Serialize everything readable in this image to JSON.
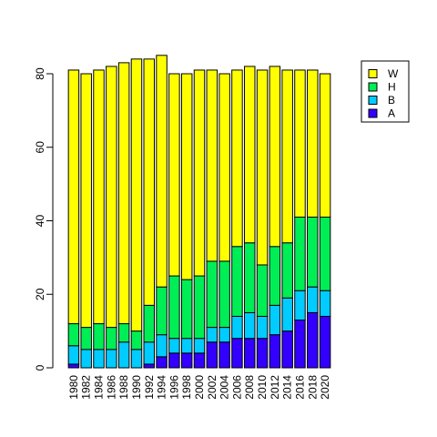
{
  "chart_data": {
    "type": "bar",
    "stacked": true,
    "categories": [
      "1980",
      "1982",
      "1984",
      "1986",
      "1988",
      "1990",
      "1992",
      "1994",
      "1996",
      "1998",
      "2000",
      "2002",
      "2004",
      "2006",
      "2008",
      "2010",
      "2012",
      "2014",
      "2016",
      "2018",
      "2020"
    ],
    "series": [
      {
        "name": "A",
        "color": "#3300ff",
        "values": [
          1,
          0,
          0,
          0,
          0,
          0,
          1,
          3,
          4,
          4,
          4,
          7,
          7,
          8,
          8,
          8,
          9,
          10,
          13,
          15,
          14
        ]
      },
      {
        "name": "B",
        "color": "#00ccff",
        "values": [
          5,
          5,
          5,
          5,
          7,
          5,
          6,
          6,
          4,
          4,
          4,
          4,
          4,
          6,
          7,
          6,
          8,
          9,
          8,
          7,
          7
        ]
      },
      {
        "name": "H",
        "color": "#00ee55",
        "values": [
          6,
          6,
          7,
          6,
          5,
          5,
          10,
          13,
          17,
          16,
          17,
          18,
          18,
          19,
          19,
          14,
          16,
          15,
          20,
          19,
          20
        ]
      },
      {
        "name": "W",
        "color": "#ffff00",
        "values": [
          69,
          69,
          69,
          71,
          71,
          74,
          67,
          63,
          55,
          56,
          56,
          52,
          51,
          48,
          48,
          53,
          49,
          47,
          40,
          40,
          39
        ]
      }
    ],
    "yticks": [
      0,
      20,
      40,
      60,
      80
    ],
    "ylim": [
      0,
      85
    ],
    "legend": {
      "position": "top-right",
      "order": [
        "W",
        "H",
        "B",
        "A"
      ]
    },
    "title": "",
    "xlabel": "",
    "ylabel": ""
  }
}
